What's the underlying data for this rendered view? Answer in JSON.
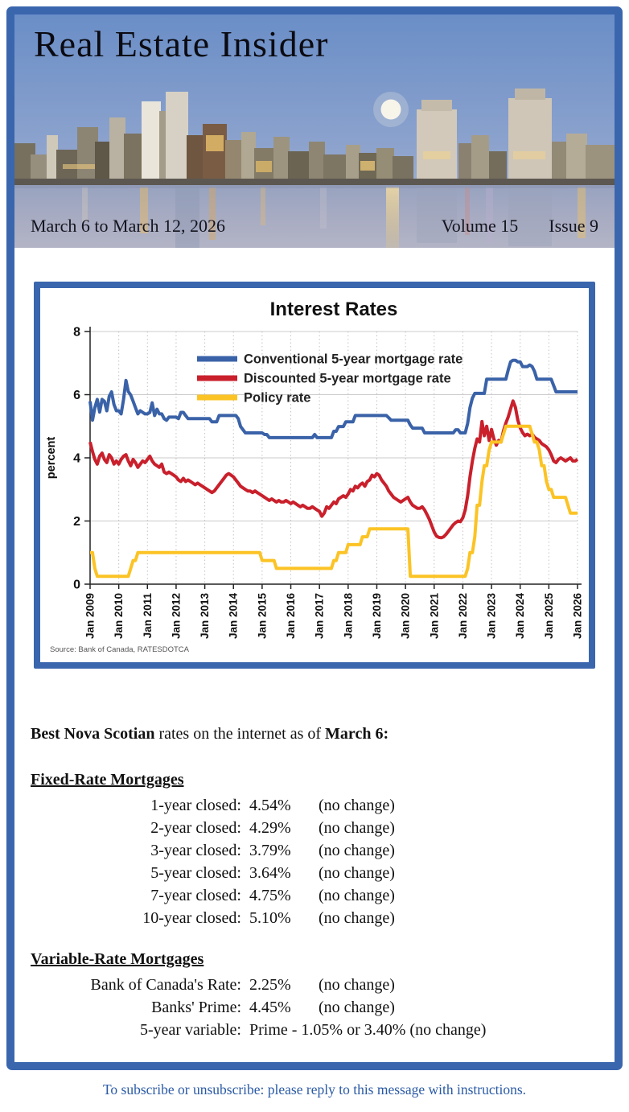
{
  "page": {
    "title": "Real Estate Insider",
    "date_range": "March 6 to March 12, 2026",
    "volume": "Volume 15",
    "issue": "Issue 9",
    "footer": "To subscribe or unsubscribe: please reply to this message with instructions."
  },
  "colors": {
    "frame_blue": "#3a66ae",
    "conventional_blue": "#3a62a8",
    "discounted_red": "#c9202c",
    "policy_gold": "#fbc324",
    "footer_text_blue": "#2a5aa5"
  },
  "chart_data": {
    "type": "line",
    "title": "Interest Rates",
    "ylabel": "percent",
    "ylim": [
      0,
      8
    ],
    "yticks": [
      0,
      2,
      4,
      6,
      8
    ],
    "grid": "horizontal solid light gray at yticks; vertical dotted at each January",
    "legend_position": "inside top-center",
    "source": "Source: Bank of Canada, RATESDOTCA",
    "points_per_year": 12,
    "x_tick_labels": [
      "Jan 2009",
      "Jan 2010",
      "Jan 2011",
      "Jan 2012",
      "Jan 2013",
      "Jan 2014",
      "Jan 2015",
      "Jan 2016",
      "Jan 2017",
      "Jan 2018",
      "Jan 2019",
      "Jan 2020",
      "Jan 2021",
      "Jan 2022",
      "Jan 2023",
      "Jan 2024",
      "Jan 2025",
      "Jan 2026"
    ],
    "series": [
      {
        "name": "Conventional 5-year mortgage rate",
        "color": "#3a62a8",
        "values": [
          5.79,
          5.19,
          5.59,
          5.85,
          5.45,
          5.85,
          5.79,
          5.49,
          5.95,
          6.09,
          5.69,
          5.49,
          5.49,
          5.39,
          5.85,
          6.45,
          6.1,
          5.99,
          5.79,
          5.59,
          5.39,
          5.49,
          5.44,
          5.39,
          5.39,
          5.44,
          5.74,
          5.34,
          5.54,
          5.39,
          5.39,
          5.24,
          5.19,
          5.29,
          5.29,
          5.29,
          5.29,
          5.24,
          5.44,
          5.44,
          5.34,
          5.24,
          5.24,
          5.24,
          5.24,
          5.24,
          5.24,
          5.24,
          5.24,
          5.24,
          5.24,
          5.14,
          5.14,
          5.14,
          5.34,
          5.34,
          5.34,
          5.34,
          5.34,
          5.34,
          5.34,
          5.34,
          5.24,
          4.99,
          4.89,
          4.79,
          4.79,
          4.79,
          4.79,
          4.79,
          4.79,
          4.79,
          4.79,
          4.74,
          4.74,
          4.64,
          4.64,
          4.64,
          4.64,
          4.64,
          4.64,
          4.64,
          4.64,
          4.64,
          4.64,
          4.64,
          4.64,
          4.64,
          4.64,
          4.64,
          4.64,
          4.64,
          4.64,
          4.64,
          4.74,
          4.64,
          4.64,
          4.64,
          4.64,
          4.64,
          4.64,
          4.64,
          4.84,
          4.84,
          4.99,
          4.99,
          4.99,
          5.14,
          5.14,
          5.14,
          5.14,
          5.34,
          5.34,
          5.34,
          5.34,
          5.34,
          5.34,
          5.34,
          5.34,
          5.34,
          5.34,
          5.34,
          5.34,
          5.34,
          5.34,
          5.27,
          5.19,
          5.19,
          5.19,
          5.19,
          5.19,
          5.19,
          5.19,
          5.19,
          5.04,
          4.94,
          4.94,
          4.94,
          4.94,
          4.94,
          4.79,
          4.79,
          4.79,
          4.79,
          4.79,
          4.79,
          4.79,
          4.79,
          4.79,
          4.79,
          4.79,
          4.79,
          4.79,
          4.89,
          4.89,
          4.79,
          4.79,
          4.79,
          5.09,
          5.59,
          5.89,
          6.04,
          6.04,
          6.04,
          6.04,
          6.04,
          6.49,
          6.49,
          6.49,
          6.49,
          6.49,
          6.49,
          6.49,
          6.49,
          6.49,
          6.79,
          7.04,
          7.09,
          7.09,
          7.04,
          7.04,
          6.89,
          6.89,
          6.89,
          6.94,
          6.89,
          6.74,
          6.49,
          6.49,
          6.49,
          6.49,
          6.49,
          6.49,
          6.49,
          6.29,
          6.09,
          6.09,
          6.09,
          6.09,
          6.09,
          6.09,
          6.09,
          6.09,
          6.09,
          6.09
        ]
      },
      {
        "name": "Discounted 5-year mortgage rate",
        "color": "#c9202c",
        "values": [
          4.5,
          4.2,
          3.95,
          3.8,
          4.05,
          4.15,
          3.95,
          3.85,
          4.1,
          4.0,
          3.8,
          3.9,
          3.8,
          3.95,
          4.05,
          4.1,
          3.9,
          3.75,
          3.95,
          3.85,
          3.7,
          3.8,
          3.9,
          3.85,
          3.95,
          4.05,
          3.9,
          3.8,
          3.75,
          3.7,
          3.8,
          3.55,
          3.5,
          3.55,
          3.5,
          3.45,
          3.4,
          3.3,
          3.25,
          3.35,
          3.25,
          3.3,
          3.25,
          3.2,
          3.15,
          3.2,
          3.15,
          3.1,
          3.05,
          3.0,
          2.95,
          2.9,
          2.95,
          3.05,
          3.15,
          3.25,
          3.35,
          3.45,
          3.5,
          3.45,
          3.4,
          3.3,
          3.2,
          3.1,
          3.05,
          3.0,
          2.95,
          2.95,
          2.9,
          2.95,
          2.9,
          2.85,
          2.8,
          2.75,
          2.7,
          2.65,
          2.7,
          2.65,
          2.6,
          2.65,
          2.6,
          2.6,
          2.65,
          2.6,
          2.55,
          2.6,
          2.55,
          2.5,
          2.45,
          2.5,
          2.45,
          2.4,
          2.4,
          2.45,
          2.4,
          2.35,
          2.3,
          2.15,
          2.25,
          2.45,
          2.4,
          2.5,
          2.6,
          2.55,
          2.7,
          2.75,
          2.8,
          2.75,
          2.85,
          3.0,
          2.95,
          3.1,
          3.05,
          3.15,
          3.2,
          3.1,
          3.25,
          3.3,
          3.45,
          3.4,
          3.5,
          3.45,
          3.3,
          3.2,
          3.1,
          2.95,
          2.85,
          2.75,
          2.7,
          2.65,
          2.6,
          2.65,
          2.7,
          2.75,
          2.6,
          2.5,
          2.45,
          2.4,
          2.4,
          2.45,
          2.35,
          2.2,
          2.05,
          1.85,
          1.65,
          1.52,
          1.48,
          1.47,
          1.5,
          1.58,
          1.68,
          1.78,
          1.88,
          1.95,
          2.0,
          1.98,
          2.1,
          2.35,
          2.8,
          3.4,
          3.9,
          4.3,
          4.6,
          4.5,
          5.15,
          4.7,
          5.0,
          4.55,
          4.9,
          4.6,
          4.4,
          4.55,
          4.5,
          4.85,
          5.1,
          5.3,
          5.55,
          5.8,
          5.6,
          5.2,
          4.95,
          4.8,
          4.7,
          4.75,
          4.7,
          4.75,
          4.65,
          4.6,
          4.55,
          4.45,
          4.4,
          4.35,
          4.25,
          4.1,
          3.9,
          3.85,
          3.95,
          4.0,
          3.95,
          3.9,
          3.95,
          4.0,
          3.9,
          3.9,
          3.95
        ]
      },
      {
        "name": "Policy rate",
        "color": "#fbc324",
        "values": [
          1.0,
          1.0,
          0.5,
          0.25,
          0.25,
          0.25,
          0.25,
          0.25,
          0.25,
          0.25,
          0.25,
          0.25,
          0.25,
          0.25,
          0.25,
          0.25,
          0.25,
          0.5,
          0.75,
          0.75,
          1.0,
          1.0,
          1.0,
          1.0,
          1.0,
          1.0,
          1.0,
          1.0,
          1.0,
          1.0,
          1.0,
          1.0,
          1.0,
          1.0,
          1.0,
          1.0,
          1.0,
          1.0,
          1.0,
          1.0,
          1.0,
          1.0,
          1.0,
          1.0,
          1.0,
          1.0,
          1.0,
          1.0,
          1.0,
          1.0,
          1.0,
          1.0,
          1.0,
          1.0,
          1.0,
          1.0,
          1.0,
          1.0,
          1.0,
          1.0,
          1.0,
          1.0,
          1.0,
          1.0,
          1.0,
          1.0,
          1.0,
          1.0,
          1.0,
          1.0,
          1.0,
          1.0,
          0.75,
          0.75,
          0.75,
          0.75,
          0.75,
          0.75,
          0.5,
          0.5,
          0.5,
          0.5,
          0.5,
          0.5,
          0.5,
          0.5,
          0.5,
          0.5,
          0.5,
          0.5,
          0.5,
          0.5,
          0.5,
          0.5,
          0.5,
          0.5,
          0.5,
          0.5,
          0.5,
          0.5,
          0.5,
          0.5,
          0.75,
          0.75,
          1.0,
          1.0,
          1.0,
          1.0,
          1.25,
          1.25,
          1.25,
          1.25,
          1.25,
          1.25,
          1.5,
          1.5,
          1.5,
          1.75,
          1.75,
          1.75,
          1.75,
          1.75,
          1.75,
          1.75,
          1.75,
          1.75,
          1.75,
          1.75,
          1.75,
          1.75,
          1.75,
          1.75,
          1.75,
          1.75,
          0.25,
          0.25,
          0.25,
          0.25,
          0.25,
          0.25,
          0.25,
          0.25,
          0.25,
          0.25,
          0.25,
          0.25,
          0.25,
          0.25,
          0.25,
          0.25,
          0.25,
          0.25,
          0.25,
          0.25,
          0.25,
          0.25,
          0.25,
          0.25,
          0.5,
          1.0,
          1.0,
          1.5,
          2.5,
          2.5,
          3.25,
          3.75,
          3.75,
          4.25,
          4.5,
          4.5,
          4.5,
          4.5,
          4.5,
          4.75,
          5.0,
          5.0,
          5.0,
          5.0,
          5.0,
          5.0,
          5.0,
          5.0,
          5.0,
          5.0,
          5.0,
          4.75,
          4.5,
          4.5,
          4.25,
          3.75,
          3.75,
          3.25,
          3.0,
          3.0,
          2.75,
          2.75,
          2.75,
          2.75,
          2.75,
          2.75,
          2.5,
          2.25,
          2.25,
          2.25,
          2.25
        ]
      }
    ]
  },
  "rates": {
    "intro_bold1": "Best Nova Scotian",
    "intro_mid": " rates on the internet as of ",
    "intro_bold2": "March 6:",
    "fixed": {
      "heading": "Fixed-Rate Mortgages",
      "rows": [
        {
          "label": "1-year closed:",
          "value": "4.54%",
          "note": "(no change)"
        },
        {
          "label": "2-year closed:",
          "value": "4.29%",
          "note": "(no change)"
        },
        {
          "label": "3-year closed:",
          "value": "3.79%",
          "note": "(no change)"
        },
        {
          "label": "5-year closed:",
          "value": "3.64%",
          "note": "(no change)"
        },
        {
          "label": "7-year closed:",
          "value": "4.75%",
          "note": "(no change)"
        },
        {
          "label": "10-year closed:",
          "value": "5.10%",
          "note": "(no change)"
        }
      ]
    },
    "variable": {
      "heading": "Variable-Rate Mortgages",
      "rows": [
        {
          "label": "Bank of Canada's Rate:",
          "value": "2.25%",
          "note": "(no change)"
        },
        {
          "label": "Banks' Prime:",
          "value": "4.45%",
          "note": "(no change)"
        },
        {
          "label": "5-year variable:",
          "value": "Prime - 1.05% or 3.40% (no change)",
          "note": ""
        }
      ]
    }
  }
}
